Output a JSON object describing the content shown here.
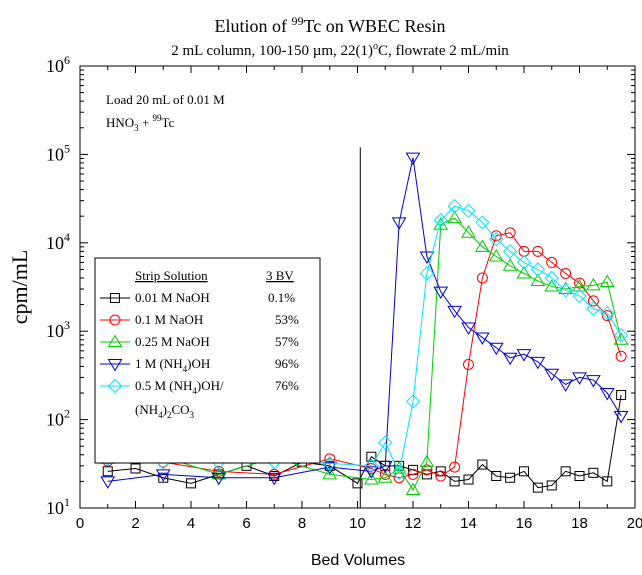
{
  "chart_data": {
    "type": "scatter",
    "title_prefix": "Elution of ",
    "title_isotope_mass": "99",
    "title_isotope_symbol": "Tc",
    "title_suffix": " on WBEC Resin",
    "subtitle_part1": "2 mL column, 100-150 µm, 22(1)",
    "subtitle_degree": "o",
    "subtitle_part2": "C, flowrate 2 mL/min",
    "xlabel": "Bed Volumes",
    "ylabel": "cpm/mL",
    "x_scale": "linear",
    "y_scale": "log",
    "xlim": [
      0,
      20
    ],
    "ylim": [
      10,
      1000000
    ],
    "x_ticks": [
      "0",
      "2",
      "4",
      "6",
      "8",
      "10",
      "12",
      "14",
      "16",
      "18",
      "20"
    ],
    "y_ticks": [
      {
        "base": "10",
        "exp": "1"
      },
      {
        "base": "10",
        "exp": "2"
      },
      {
        "base": "10",
        "exp": "3"
      },
      {
        "base": "10",
        "exp": "4"
      },
      {
        "base": "10",
        "exp": "5"
      },
      {
        "base": "10",
        "exp": "6"
      }
    ],
    "load_end_bv": 10.1,
    "annotation_line1": "Load 20 mL of 0.01 M",
    "annotation_line2_prefix": "HNO",
    "annotation_line2_sub": "3",
    "annotation_line2_mid": " + ",
    "annotation_line2_sup": "99",
    "annotation_line2_suffix": "Tc",
    "legend": {
      "header_left": "Strip Solution",
      "header_right": "3 BV",
      "placement": "left",
      "entries": [
        {
          "label": "0.01 M NaOH",
          "value": "0.1%"
        },
        {
          "label": "0.1 M NaOH",
          "value": "53%"
        },
        {
          "label": "0.25 M NaOH",
          "value": "57%"
        },
        {
          "label_prefix": "1 M (NH",
          "label_sub": "4",
          "label_suffix": ")OH",
          "value": "96%"
        },
        {
          "label": "0.5 M (NH4)OH/",
          "label_line1_prefix": "0.5 M (NH",
          "label_line1_sub": "4",
          "label_line1_suffix": ")OH/",
          "label_line2_prefix": "(NH",
          "label_line2_sub": "4",
          "label_line2_mid": ")",
          "label_line2_sub2": "2",
          "label_line2_suffix": "CO",
          "label_line2_sub3": "3",
          "value": "76%"
        }
      ]
    },
    "series": [
      {
        "name": "0.01 M NaOH",
        "color": "#000000",
        "marker": "square",
        "x": [
          1,
          2,
          3,
          4,
          5,
          6,
          7,
          8,
          9,
          10,
          10.5,
          11,
          11.5,
          12,
          12.5,
          13,
          13.5,
          14,
          14.5,
          15,
          15.5,
          16,
          16.5,
          17,
          17.5,
          18,
          18.5,
          19,
          19.5
        ],
        "y": [
          26,
          28,
          22,
          19,
          24,
          30,
          23,
          33,
          30,
          19,
          38,
          30,
          30,
          27,
          24,
          26,
          20,
          21,
          31,
          23,
          22,
          26,
          17,
          18,
          26,
          23,
          25,
          20,
          190
        ]
      },
      {
        "name": "0.1 M NaOH",
        "color": "#ff0000",
        "marker": "circle",
        "x": [
          1,
          3,
          5,
          7,
          9,
          10.5,
          11,
          11.5,
          12,
          12.5,
          13,
          13.5,
          14,
          14.5,
          15,
          15.5,
          16,
          16.5,
          17,
          17.5,
          18,
          18.5,
          19,
          19.5
        ],
        "y": [
          34,
          33,
          26,
          24,
          36,
          28,
          24,
          22,
          24,
          27,
          23,
          29,
          420,
          4000,
          12000,
          13000,
          8000,
          8000,
          6000,
          4500,
          3500,
          2200,
          1500,
          520
        ]
      },
      {
        "name": "0.25 M NaOH",
        "color": "#00cc00",
        "marker": "triangle-up",
        "x": [
          1,
          3,
          5,
          7,
          9,
          10.5,
          11,
          11.5,
          12,
          12.5,
          13,
          13.5,
          14,
          14.5,
          15,
          15.5,
          16,
          16.5,
          17,
          17.5,
          18,
          18.5,
          19,
          19.5
        ],
        "y": [
          36,
          38,
          24,
          37,
          24,
          21,
          22,
          28,
          16,
          33,
          16000,
          19000,
          13000,
          9000,
          7000,
          5500,
          4500,
          3700,
          3200,
          3000,
          3200,
          3300,
          3600,
          800
        ]
      },
      {
        "name": "1 M (NH4)OH",
        "color": "#0000cc",
        "marker": "triangle-down",
        "x": [
          1,
          3,
          5,
          7,
          9,
          10.5,
          11,
          11.5,
          12,
          12.5,
          13,
          13.5,
          14,
          14.5,
          15,
          15.5,
          16,
          16.5,
          17,
          17.5,
          18,
          18.5,
          19,
          19.5
        ],
        "y": [
          20,
          24,
          22,
          22,
          29,
          26,
          30,
          17000,
          92000,
          7000,
          2800,
          1700,
          1100,
          850,
          650,
          500,
          550,
          450,
          330,
          250,
          300,
          280,
          200,
          110
        ]
      },
      {
        "name": "0.5 M (NH4)OH/(NH4)2CO3",
        "color": "#00e5ff",
        "marker": "diamond",
        "x": [
          1,
          3,
          5,
          7,
          9,
          10.5,
          11,
          11.5,
          12,
          12.5,
          13,
          13.5,
          14,
          14.5,
          15,
          15.5,
          16,
          16.5,
          17,
          17.5,
          18,
          18.5,
          19,
          19.5
        ],
        "y": [
          36,
          33,
          33,
          33,
          32,
          30,
          55,
          25,
          160,
          4500,
          18000,
          26000,
          23000,
          17000,
          11000,
          8000,
          6000,
          5000,
          4000,
          2900,
          2500,
          1800,
          1600,
          900
        ]
      }
    ]
  }
}
